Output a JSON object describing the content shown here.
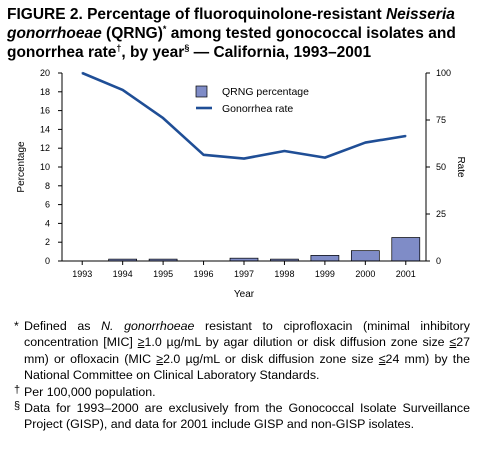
{
  "title": {
    "part1": "FIGURE 2. Percentage of fluoroquinolone-resistant ",
    "italic1": "Neisseria gonorrhoeae",
    "part2": " (QRNG)",
    "mark1": "*",
    "part3": " among tested gonococcal isolates and gonorrhea rate",
    "mark2": "†",
    "part4": ", by year",
    "mark3": "§",
    "part5": " — California, 1993–2001"
  },
  "chart_data": {
    "type": "bar+line",
    "categories": [
      "1993",
      "1994",
      "1995",
      "1996",
      "1997",
      "1998",
      "1999",
      "2000",
      "2001"
    ],
    "xlabel": "Year",
    "ylabel_left": "Percentage",
    "ylabel_right": "Rate",
    "ylim_left": [
      0,
      20
    ],
    "ylim_right": [
      0,
      100
    ],
    "yticks_left": [
      "0",
      "2",
      "4",
      "6",
      "8",
      "10",
      "12",
      "14",
      "16",
      "18",
      "20"
    ],
    "yticks_right": [
      "0",
      "25",
      "50",
      "75",
      "100"
    ],
    "series": [
      {
        "name": "QRNG percentage",
        "type": "bar",
        "axis": "left",
        "color": "#7f8cc7",
        "values": [
          0,
          0.2,
          0.2,
          0,
          0.3,
          0.2,
          0.6,
          1.1,
          2.5
        ]
      },
      {
        "name": "Gonorrhea rate",
        "type": "line",
        "axis": "right",
        "color": "#1f4e96",
        "values": [
          100,
          91,
          76,
          56.5,
          54.5,
          58.5,
          55,
          63,
          66.5
        ]
      }
    ],
    "legend": "top-right"
  },
  "footnotes": {
    "n1": {
      "mark": "*",
      "t1": "Defined as ",
      "italic": "N. gonorrhoeae",
      "t2": " resistant to ciprofloxacin (minimal inhibitory concentration [MIC] ",
      "ge1": "≥",
      "t3": "1.0 µg/mL by agar dilution or disk diffusion zone size ",
      "le1": "≤",
      "t4": "27 mm) or ofloxacin (MIC ",
      "ge2": "≥",
      "t5": "2.0 µg/mL or disk diffusion zone size ",
      "le2": "≤",
      "t6": "24 mm) by the National Committee on Clinical Laboratory Standards."
    },
    "n2": {
      "mark": "†",
      "text": "Per 100,000 population."
    },
    "n3": {
      "mark": "§",
      "text": "Data for 1993–2000 are exclusively from the Gonococcal Isolate Surveillance Project (GISP), and data for 2001 include GISP and non-GISP isolates."
    }
  }
}
